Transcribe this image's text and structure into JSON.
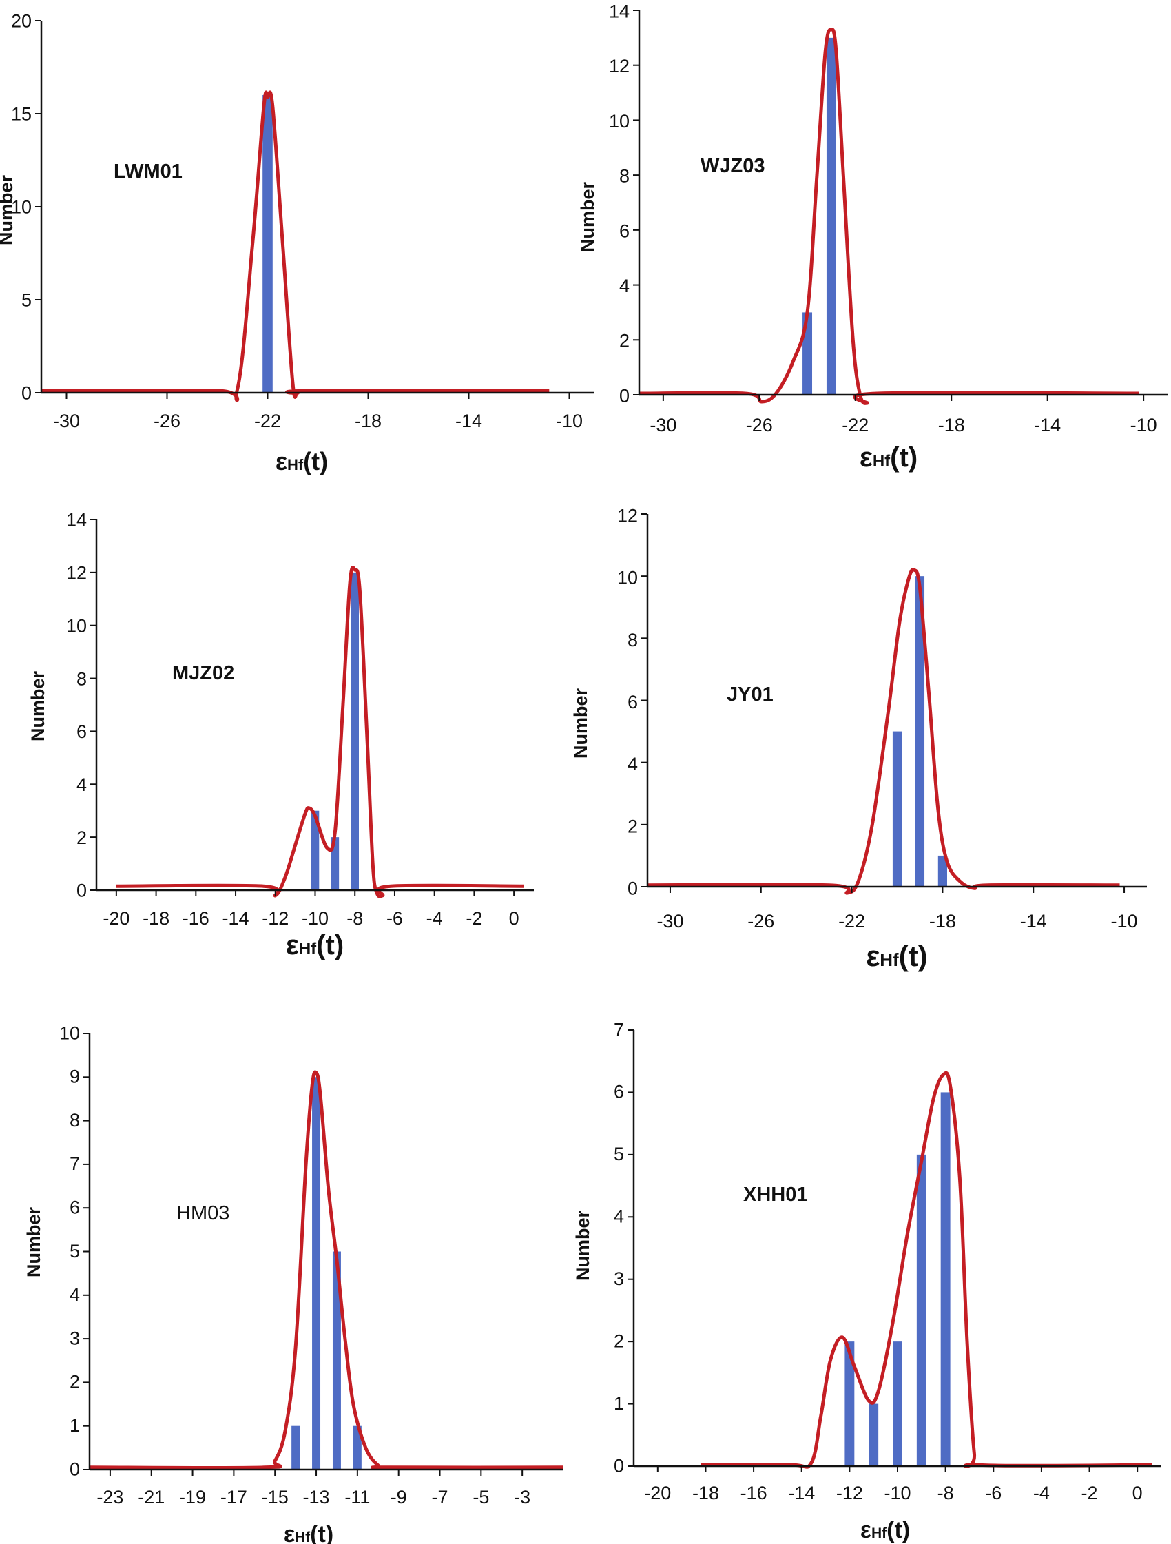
{
  "chart_data": [
    {
      "type": "bar",
      "panel": "LWM01",
      "annotations": [
        "LWM01"
      ],
      "ylabel": "Number",
      "xlabel": {
        "symbol": "ε",
        "subscript": "Hf",
        "suffix": "(t)"
      },
      "xlim": [
        -31,
        -9
      ],
      "ylim": [
        0,
        20
      ],
      "xticks": [
        -30,
        -26,
        -22,
        -18,
        -14,
        -10
      ],
      "yticks": [
        0,
        5,
        10,
        15,
        20
      ],
      "bar_width": 0.4,
      "bars": [
        {
          "x": -22,
          "value": 16
        }
      ],
      "curve": [
        [
          -31,
          0.1
        ],
        [
          -24,
          0.1
        ],
        [
          -23.2,
          0.2
        ],
        [
          -22.6,
          8
        ],
        [
          -22.15,
          15.4
        ],
        [
          -22,
          15.9
        ],
        [
          -21.8,
          15.4
        ],
        [
          -21.4,
          8
        ],
        [
          -21.0,
          0.5
        ],
        [
          -20.8,
          0
        ],
        [
          -20.4,
          0.1
        ],
        [
          -10.8,
          0.1
        ]
      ]
    },
    {
      "type": "bar",
      "panel": "WJZ03",
      "annotations": [
        "WJZ03"
      ],
      "ylabel": "Number",
      "xlabel": {
        "symbol": "ε",
        "subscript": "Hf",
        "suffix": "(t)"
      },
      "xlim": [
        -31,
        -9
      ],
      "ylim": [
        0,
        14
      ],
      "xticks": [
        -30,
        -26,
        -22,
        -18,
        -14,
        -10
      ],
      "yticks": [
        0,
        2,
        4,
        6,
        8,
        10,
        12,
        14
      ],
      "bar_width": 0.4,
      "bars": [
        {
          "x": -24,
          "value": 3
        },
        {
          "x": -23,
          "value": 13
        }
      ],
      "curve": [
        [
          -31,
          0.05
        ],
        [
          -26.6,
          0.05
        ],
        [
          -25.9,
          -0.25
        ],
        [
          -25.3,
          0.05
        ],
        [
          -24.6,
          1.2
        ],
        [
          -24,
          3
        ],
        [
          -23.6,
          8
        ],
        [
          -23.25,
          12.5
        ],
        [
          -23,
          13.3
        ],
        [
          -22.8,
          12.5
        ],
        [
          -22.5,
          8
        ],
        [
          -22.1,
          2
        ],
        [
          -21.8,
          0
        ],
        [
          -21.5,
          -0.3
        ],
        [
          -21.1,
          0.05
        ],
        [
          -10.2,
          0.05
        ]
      ]
    },
    {
      "type": "bar",
      "panel": "MJZ02",
      "annotations": [
        "MJZ02"
      ],
      "ylabel": "Number",
      "xlabel": {
        "symbol": "ε",
        "subscript": "Hf",
        "suffix": "(t)"
      },
      "xlim": [
        -21,
        1
      ],
      "ylim": [
        0,
        14
      ],
      "xticks": [
        -20,
        -18,
        -16,
        -14,
        -12,
        -10,
        -8,
        -6,
        -4,
        -2,
        0
      ],
      "yticks": [
        0,
        2,
        4,
        6,
        8,
        10,
        12,
        14
      ],
      "bar_width": 0.4,
      "bars": [
        {
          "x": -10,
          "value": 3
        },
        {
          "x": -9,
          "value": 2
        },
        {
          "x": -8,
          "value": 12
        }
      ],
      "curve": [
        [
          -20,
          0.15
        ],
        [
          -12.6,
          0.15
        ],
        [
          -12,
          -0.2
        ],
        [
          -11.5,
          0.5
        ],
        [
          -11,
          1.7
        ],
        [
          -10.5,
          2.9
        ],
        [
          -10.3,
          3.1
        ],
        [
          -10,
          2.8
        ],
        [
          -9.4,
          1.6
        ],
        [
          -9,
          2.2
        ],
        [
          -8.6,
          7
        ],
        [
          -8.25,
          11.6
        ],
        [
          -8.0,
          12.1
        ],
        [
          -7.75,
          11.3
        ],
        [
          -7.4,
          6
        ],
        [
          -7.1,
          1
        ],
        [
          -6.9,
          -0.1
        ],
        [
          -6.6,
          -0.2
        ],
        [
          -6.2,
          0.15
        ],
        [
          0.5,
          0.15
        ]
      ]
    },
    {
      "type": "bar",
      "panel": "JY01",
      "annotations": [
        "JY01"
      ],
      "ylabel": "Number",
      "xlabel": {
        "symbol": "ε",
        "subscript": "Hf",
        "suffix": "(t)"
      },
      "xlim": [
        -31,
        -9
      ],
      "ylim": [
        0,
        12
      ],
      "xticks": [
        -30,
        -26,
        -22,
        -18,
        -14,
        -10
      ],
      "yticks": [
        0,
        2,
        4,
        6,
        8,
        10,
        12
      ],
      "bar_width": 0.4,
      "bars": [
        {
          "x": -20,
          "value": 5
        },
        {
          "x": -19,
          "value": 10
        },
        {
          "x": -18,
          "value": 1
        }
      ],
      "curve": [
        [
          -31,
          0.05
        ],
        [
          -23,
          0.05
        ],
        [
          -22.2,
          -0.2
        ],
        [
          -21.7,
          0.2
        ],
        [
          -21.1,
          2
        ],
        [
          -20.4,
          5.6
        ],
        [
          -19.9,
          8.5
        ],
        [
          -19.5,
          9.9
        ],
        [
          -19.25,
          10.2
        ],
        [
          -19,
          9.6
        ],
        [
          -18.6,
          6.2
        ],
        [
          -18.2,
          2.5
        ],
        [
          -17.8,
          0.8
        ],
        [
          -17.2,
          0.15
        ],
        [
          -16.6,
          -0.05
        ],
        [
          -16,
          0.05
        ],
        [
          -10.2,
          0.05
        ]
      ]
    },
    {
      "type": "bar",
      "panel": "HM03",
      "annotations": [
        "HM03"
      ],
      "ylabel": "Number",
      "xlabel": {
        "symbol": "ε",
        "subscript": "Hf",
        "suffix": "(t)"
      },
      "xlim": [
        -24,
        -1
      ],
      "ylim": [
        0,
        10
      ],
      "xticks": [
        -23,
        -21,
        -19,
        -17,
        -15,
        -13,
        -11,
        -9,
        -7,
        -5,
        -3
      ],
      "yticks": [
        0,
        1,
        2,
        3,
        4,
        5,
        6,
        7,
        8,
        9,
        10
      ],
      "bar_width": 0.4,
      "bars": [
        {
          "x": -14,
          "value": 1
        },
        {
          "x": -13,
          "value": 9
        },
        {
          "x": -12,
          "value": 5
        },
        {
          "x": -11,
          "value": 1
        }
      ],
      "curve": [
        [
          -24,
          0.05
        ],
        [
          -15.5,
          0.05
        ],
        [
          -15,
          0.2
        ],
        [
          -14.5,
          0.9
        ],
        [
          -14,
          2.8
        ],
        [
          -13.5,
          7
        ],
        [
          -13.2,
          8.8
        ],
        [
          -13,
          9.1
        ],
        [
          -12.8,
          8.6
        ],
        [
          -12.4,
          6.4
        ],
        [
          -12,
          4.8
        ],
        [
          -11.6,
          3
        ],
        [
          -11.2,
          1.5
        ],
        [
          -10.6,
          0.5
        ],
        [
          -10,
          0.1
        ],
        [
          -9.5,
          0.05
        ],
        [
          -1,
          0.05
        ]
      ]
    },
    {
      "type": "bar",
      "panel": "XHH01",
      "annotations": [
        "XHH01"
      ],
      "ylabel": "Number",
      "xlabel": {
        "symbol": "ε",
        "subscript": "Hf",
        "suffix": "(t)"
      },
      "xlim": [
        -21,
        1
      ],
      "ylim": [
        0,
        7
      ],
      "xticks": [
        -20,
        -18,
        -16,
        -14,
        -12,
        -10,
        -8,
        -6,
        -4,
        -2,
        0
      ],
      "yticks": [
        0,
        1,
        2,
        3,
        4,
        5,
        6,
        7
      ],
      "bar_width": 0.4,
      "bars": [
        {
          "x": -12,
          "value": 2
        },
        {
          "x": -11,
          "value": 1
        },
        {
          "x": -10,
          "value": 2
        },
        {
          "x": -9,
          "value": 5
        },
        {
          "x": -8,
          "value": 6
        }
      ],
      "curve": [
        [
          -18.2,
          0.02
        ],
        [
          -14.5,
          0.02
        ],
        [
          -13.6,
          0.05
        ],
        [
          -13.2,
          0.8
        ],
        [
          -12.8,
          1.7
        ],
        [
          -12.3,
          2.07
        ],
        [
          -11.8,
          1.6
        ],
        [
          -11.2,
          1.05
        ],
        [
          -10.8,
          1.2
        ],
        [
          -10.2,
          2.3
        ],
        [
          -9.6,
          3.7
        ],
        [
          -9,
          4.9
        ],
        [
          -8.5,
          5.9
        ],
        [
          -8.1,
          6.28
        ],
        [
          -7.8,
          6.1
        ],
        [
          -7.4,
          4.6
        ],
        [
          -7.1,
          2
        ],
        [
          -6.8,
          0.2
        ],
        [
          -6.6,
          0.02
        ],
        [
          0.6,
          0.02
        ]
      ]
    }
  ],
  "style": {
    "bar_color": "#4f6cc4",
    "curve_color": "#c41e24",
    "axis_color": "#111111"
  }
}
